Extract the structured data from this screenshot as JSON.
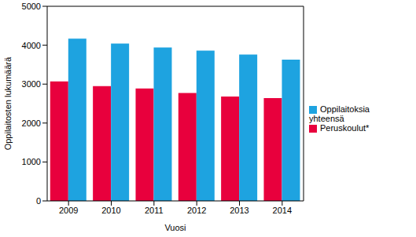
{
  "chart_data": {
    "type": "bar",
    "x_label": "Vuosi",
    "y_label": "Oppilaitosten lukumäärä",
    "categories": [
      "2009",
      "2010",
      "2011",
      "2012",
      "2013",
      "2014"
    ],
    "series": [
      {
        "name": "Peruskoulut*",
        "color": "#e8003d",
        "values": [
          3070,
          2950,
          2890,
          2770,
          2680,
          2640
        ]
      },
      {
        "name": "Oppilaitoksia yhteensä",
        "color": "#1ea3e0",
        "values": [
          4170,
          4040,
          3940,
          3860,
          3760,
          3630
        ]
      }
    ],
    "ylim": [
      0,
      5000
    ],
    "yticks": [
      0,
      1000,
      2000,
      3000,
      4000,
      5000
    ],
    "grid": false,
    "legend": "right"
  }
}
